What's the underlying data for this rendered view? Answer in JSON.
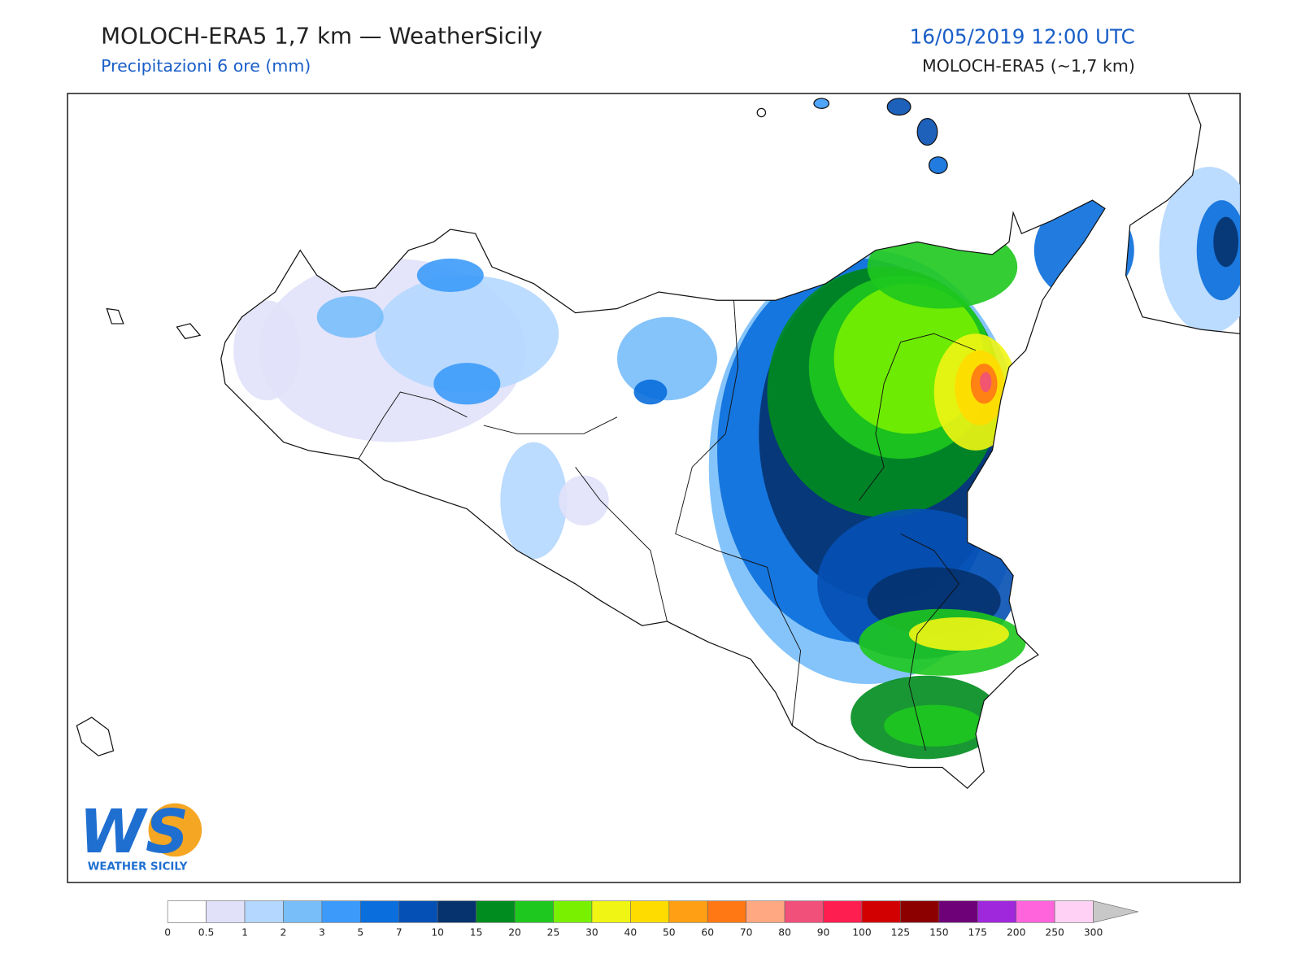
{
  "header": {
    "title": "MOLOCH-ERA5 1,7 km — WeatherSicily",
    "subtitle": "Precipitazioni 6 ore (mm)",
    "valid_time": "16/05/2019 12:00 UTC",
    "model": "MOLOCH-ERA5 (~1,7 km)"
  },
  "logo": {
    "mark": "WS",
    "name": "WEATHER SICILY"
  },
  "colorbar": {
    "levels": [
      0,
      0.5,
      1,
      2,
      3,
      5,
      7,
      10,
      15,
      20,
      25,
      30,
      40,
      50,
      60,
      70,
      80,
      90,
      100,
      125,
      150,
      175,
      200,
      250,
      300
    ],
    "colors": [
      "#ffffff",
      "#e1e1fa",
      "#b4d7ff",
      "#78bef9",
      "#3c9bfa",
      "#0a6edc",
      "#0550b4",
      "#06326e",
      "#008c1e",
      "#1ec81e",
      "#78f000",
      "#f0f514",
      "#ffdc00",
      "#ffa014",
      "#ff7814",
      "#ffa882",
      "#f0507a",
      "#ff1e50",
      "#d20000",
      "#8c0000",
      "#6e0078",
      "#a028dc",
      "#ff64dc",
      "#ffd2f5"
    ],
    "extend_color": "#c8c8c8"
  }
}
